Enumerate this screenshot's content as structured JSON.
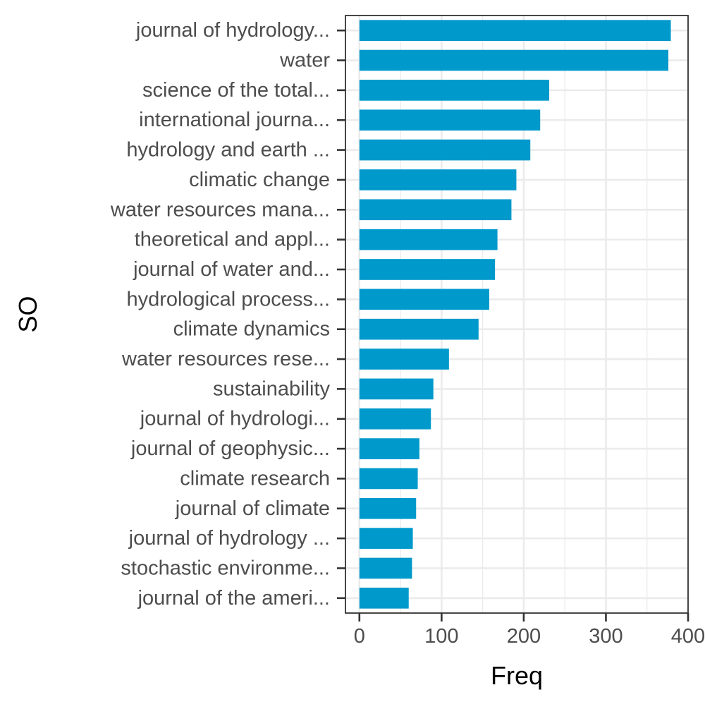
{
  "chart_data": {
    "type": "bar",
    "orientation": "horizontal",
    "xlabel": "Freq",
    "ylabel": "SO",
    "categories": [
      "journal of hydrology...",
      "water",
      "science of the total...",
      "international journa...",
      "hydrology and earth ...",
      "climatic change",
      "water resources mana...",
      "theoretical and appl...",
      "journal of water and...",
      "hydrological process...",
      "climate dynamics",
      "water resources rese...",
      "sustainability",
      "journal of hydrologi...",
      "journal of geophysic...",
      "climate research",
      "journal of climate",
      "journal of hydrology ...",
      "stochastic environme...",
      "journal of the ameri..."
    ],
    "values": [
      379,
      376,
      231,
      220,
      208,
      191,
      185,
      168,
      165,
      158,
      145,
      109,
      90,
      87,
      73,
      71,
      69,
      65,
      64,
      60
    ],
    "xlim": [
      -17,
      400
    ],
    "xticks": [
      0,
      100,
      200,
      300,
      400
    ],
    "grid": true,
    "bar_color": "#0099CC",
    "grid_color": "#EBEBEB",
    "theme": "bw"
  }
}
